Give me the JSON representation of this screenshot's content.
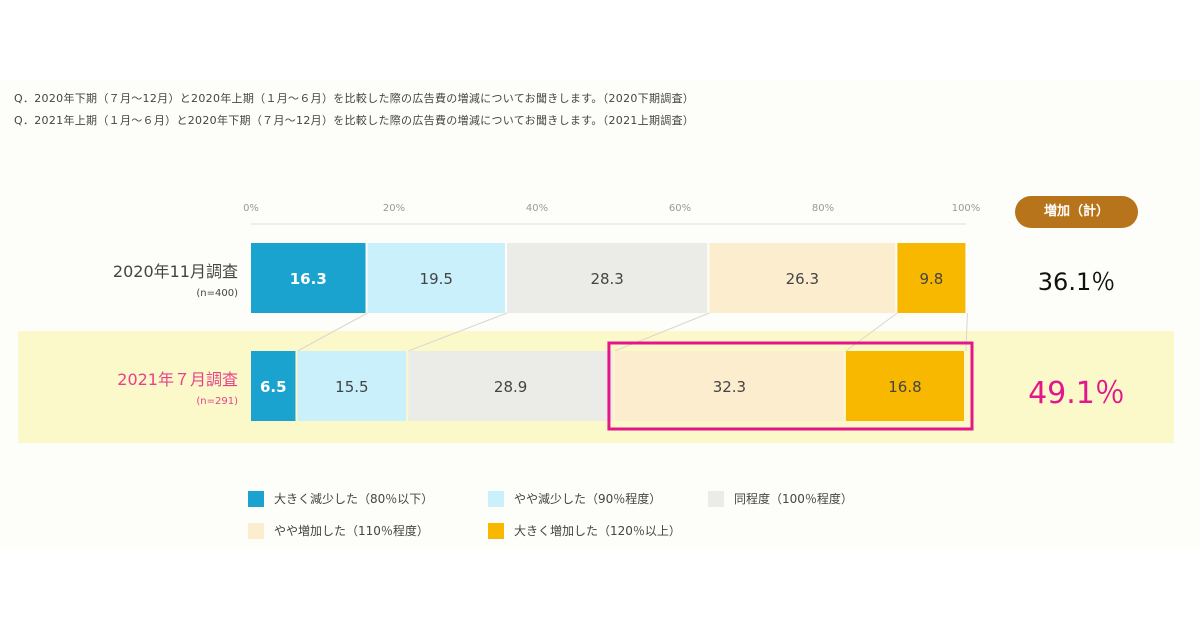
{
  "questions": [
    "Q．2020年下期（７月～12月）と2020年上期（１月～６月）を比較した際の広告費の増減についてお聞きします。（2020下期調査）",
    "Q．2021年上期（１月～６月）と2020年下期（７月～12月）を比較した際の広告費の増減についてお聞きします。（2021上期調査）"
  ],
  "total_badge": "増加（計）",
  "rows": [
    {
      "title": "2020年11月調査",
      "n": "(n=400)",
      "total": "36.1％",
      "title_color": "#444444",
      "total_color": "#111111"
    },
    {
      "title": "2021年７月調査",
      "n": "(n=291)",
      "total": "49.1％",
      "title_color": "#e8418a",
      "total_color": "#e4168c"
    }
  ],
  "chart_data": {
    "type": "bar",
    "orientation": "horizontal-stacked",
    "x_ticks": [
      "0%",
      "20%",
      "40%",
      "60%",
      "80%",
      "100%"
    ],
    "xlim": [
      0,
      100
    ],
    "categories": [
      "2020年11月調査",
      "2021年７月調査"
    ],
    "series": [
      {
        "name": "大きく減少した（80％以下）",
        "color": "#1aa3cf",
        "values": [
          16.3,
          6.5
        ],
        "label_color": "#ffffff"
      },
      {
        "name": "やや減少した（90％程度）",
        "color": "#c9f0fb",
        "values": [
          19.5,
          15.5
        ],
        "label_color": "#444444"
      },
      {
        "name": "同程度（100％程度）",
        "color": "#ebebe7",
        "values": [
          28.3,
          28.9
        ],
        "label_color": "#444444"
      },
      {
        "name": "やや増加した（110％程度）",
        "color": "#fdedcf",
        "values": [
          26.3,
          32.3
        ],
        "label_color": "#444444"
      },
      {
        "name": "大きく増加した（120％以上）",
        "color": "#f8b800",
        "values": [
          9.8,
          16.8
        ],
        "label_color": "#444444"
      }
    ],
    "highlight": {
      "row": 1,
      "series": [
        3,
        4
      ],
      "color": "#e4168c"
    },
    "legend_position": "bottom"
  }
}
